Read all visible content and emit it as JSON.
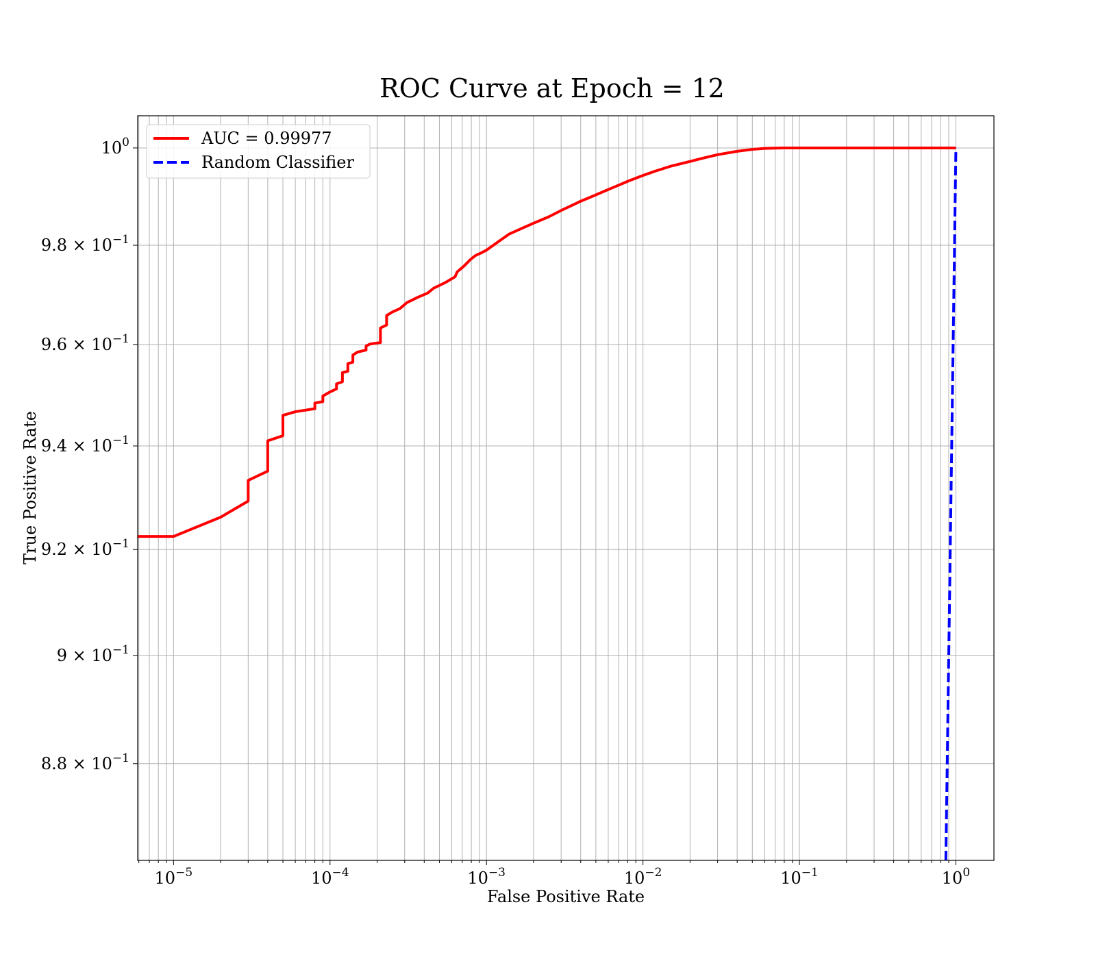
{
  "chart_data": {
    "type": "line",
    "title": "ROC Curve at Epoch = 12",
    "xlabel": "False Positive Rate",
    "ylabel": "True Positive Rate",
    "xscale": "log",
    "yscale": "log",
    "xlim": [
      5.9e-06,
      1.75
    ],
    "ylim": [
      0.8625,
      1.0067
    ],
    "grid": true,
    "legend_position": "top-left",
    "x_ticks": [
      {
        "value": 1e-05,
        "mantissa": "10",
        "exponent": "−5"
      },
      {
        "value": 0.0001,
        "mantissa": "10",
        "exponent": "−4"
      },
      {
        "value": 0.001,
        "mantissa": "10",
        "exponent": "−3"
      },
      {
        "value": 0.01,
        "mantissa": "10",
        "exponent": "−2"
      },
      {
        "value": 0.1,
        "mantissa": "10",
        "exponent": "−1"
      },
      {
        "value": 1,
        "mantissa": "10",
        "exponent": "0"
      }
    ],
    "y_ticks": [
      {
        "value": 0.88,
        "mantissa": "8.8 × 10",
        "exponent": "−1"
      },
      {
        "value": 0.9,
        "mantissa": "9 × 10",
        "exponent": "−1"
      },
      {
        "value": 0.92,
        "mantissa": "9.2 × 10",
        "exponent": "−1"
      },
      {
        "value": 0.94,
        "mantissa": "9.4 × 10",
        "exponent": "−1"
      },
      {
        "value": 0.96,
        "mantissa": "9.6 × 10",
        "exponent": "−1"
      },
      {
        "value": 0.98,
        "mantissa": "9.8 × 10",
        "exponent": "−1"
      },
      {
        "value": 1.0,
        "mantissa": "10",
        "exponent": "0"
      }
    ],
    "series": [
      {
        "name": "AUC = 0.99977",
        "color": "#ff0000",
        "style": "solid",
        "x": [
          5.9e-06,
          1e-05,
          2e-05,
          3e-05,
          3e-05,
          4e-05,
          4e-05,
          5e-05,
          5e-05,
          6e-05,
          8e-05,
          8e-05,
          9e-05,
          9e-05,
          0.0001,
          0.00011,
          0.00011,
          0.00012,
          0.00012,
          0.00013,
          0.00013,
          0.00014,
          0.00014,
          0.00015,
          0.00017,
          0.00017,
          0.00018,
          0.00021,
          0.00021,
          0.00023,
          0.00023,
          0.00025,
          0.00028,
          0.00031,
          0.00033,
          0.00036,
          0.00042,
          0.00046,
          0.00055,
          0.00063,
          0.00065,
          0.00072,
          0.00079,
          0.00085,
          0.00092,
          0.001,
          0.0012,
          0.0014,
          0.0017,
          0.002,
          0.0025,
          0.003,
          0.0035,
          0.004,
          0.005,
          0.006,
          0.007,
          0.008,
          0.01,
          0.012,
          0.015,
          0.02,
          0.025,
          0.03,
          0.04,
          0.05,
          0.06,
          0.08,
          0.1,
          0.2,
          0.5,
          1.0
        ],
        "y": [
          0.9225,
          0.9225,
          0.9262,
          0.9293,
          0.9333,
          0.9351,
          0.941,
          0.942,
          0.946,
          0.9467,
          0.9473,
          0.9484,
          0.9487,
          0.9498,
          0.9506,
          0.9512,
          0.9522,
          0.9526,
          0.9544,
          0.9547,
          0.9562,
          0.9565,
          0.9579,
          0.9585,
          0.9589,
          0.9597,
          0.9601,
          0.9604,
          0.9633,
          0.9639,
          0.9658,
          0.9665,
          0.9672,
          0.9684,
          0.9688,
          0.9694,
          0.9703,
          0.9713,
          0.9725,
          0.9736,
          0.9746,
          0.9758,
          0.9771,
          0.9779,
          0.9784,
          0.979,
          0.9808,
          0.9823,
          0.9835,
          0.9845,
          0.9858,
          0.9871,
          0.9881,
          0.989,
          0.9903,
          0.9914,
          0.9923,
          0.9931,
          0.9943,
          0.9952,
          0.9962,
          0.9972,
          0.998,
          0.9986,
          0.9993,
          0.9997,
          0.9999,
          1.0,
          1.0,
          1.0,
          1.0,
          1.0
        ]
      },
      {
        "name": "Random Classifier",
        "color": "#0000ff",
        "style": "dashed",
        "x": [
          0.8625,
          1.0
        ],
        "y": [
          0.8625,
          1.0
        ]
      }
    ]
  }
}
